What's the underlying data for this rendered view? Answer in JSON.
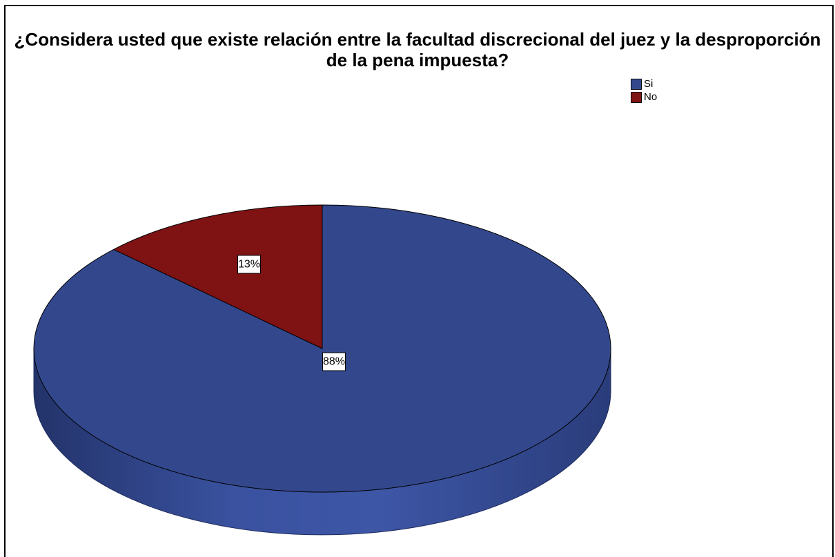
{
  "chart_data": {
    "type": "pie",
    "title": "¿Considera usted que existe relación entre la facultad discrecional del juez y la desproporción de la pena impuesta?",
    "categories": [
      "Si",
      "No"
    ],
    "values": [
      88,
      13
    ],
    "data_labels": [
      "88%",
      "13%"
    ],
    "colors": [
      "#33488c",
      "#7f1213"
    ],
    "legend_position": "top-right",
    "style": "3d"
  }
}
